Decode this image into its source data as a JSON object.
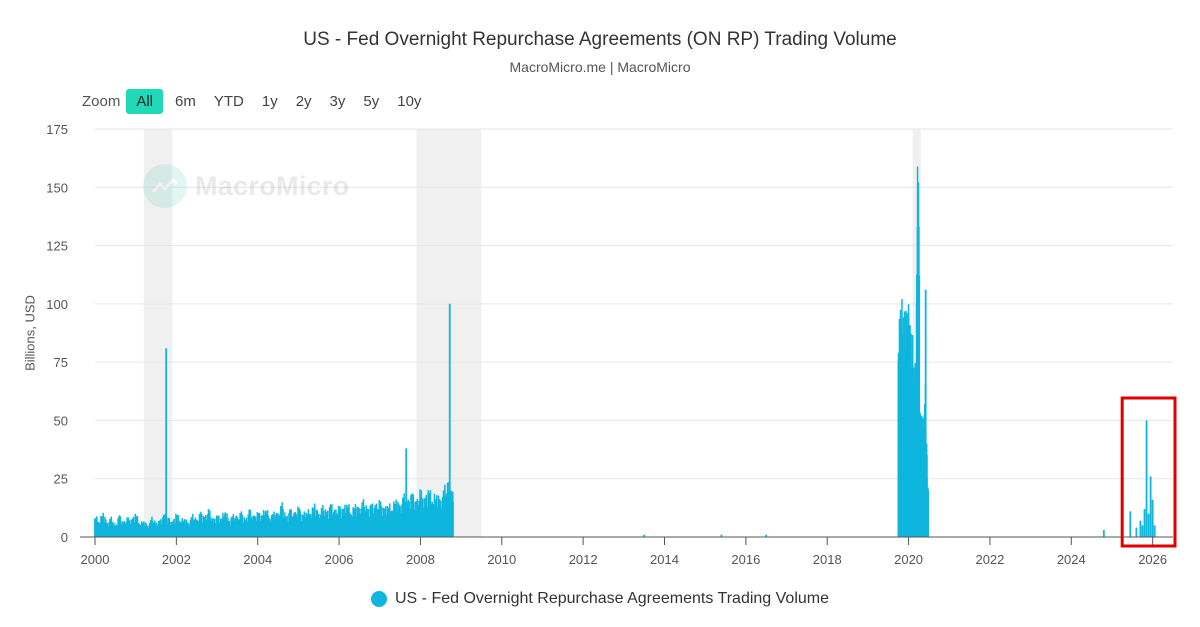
{
  "chart_data": {
    "type": "bar",
    "title": "US - Fed Overnight Repurchase Agreements (ON RP) Trading Volume",
    "subtitle": "MacroMicro.me | MacroMicro",
    "ylabel": "Billions, USD",
    "xlabel": "",
    "xlim": [
      2000,
      2026.5
    ],
    "ylim": [
      0,
      175
    ],
    "yticks": [
      0,
      25,
      50,
      75,
      100,
      125,
      150,
      175
    ],
    "xticks": [
      2000,
      2002,
      2004,
      2006,
      2008,
      2010,
      2012,
      2014,
      2016,
      2018,
      2020,
      2022,
      2024,
      2026
    ],
    "recessions": [
      [
        2001.2,
        2001.9
      ],
      [
        2007.9,
        2009.5
      ],
      [
        2020.1,
        2020.3
      ]
    ],
    "highlight_box": [
      2025.3,
      2026.5
    ],
    "series": [
      {
        "name": "US - Fed Overnight Repurchase Agreements Trading Volume",
        "color": "#0fb5dc",
        "points": [
          [
            2000.0,
            8
          ],
          [
            2000.1,
            6
          ],
          [
            2000.2,
            9
          ],
          [
            2000.3,
            5
          ],
          [
            2000.4,
            7
          ],
          [
            2000.5,
            4
          ],
          [
            2000.6,
            8
          ],
          [
            2000.7,
            5
          ],
          [
            2000.8,
            7
          ],
          [
            2000.9,
            6
          ],
          [
            2001.0,
            9
          ],
          [
            2001.1,
            5
          ],
          [
            2001.2,
            6
          ],
          [
            2001.3,
            4
          ],
          [
            2001.4,
            7
          ],
          [
            2001.5,
            5
          ],
          [
            2001.6,
            6
          ],
          [
            2001.7,
            8
          ],
          [
            2001.75,
            81
          ],
          [
            2001.8,
            7
          ],
          [
            2001.9,
            5
          ],
          [
            2002.0,
            9
          ],
          [
            2002.1,
            6
          ],
          [
            2002.2,
            7
          ],
          [
            2002.3,
            5
          ],
          [
            2002.4,
            8
          ],
          [
            2002.5,
            6
          ],
          [
            2002.6,
            9
          ],
          [
            2002.7,
            7
          ],
          [
            2002.8,
            10
          ],
          [
            2002.9,
            6
          ],
          [
            2003.0,
            8
          ],
          [
            2003.1,
            7
          ],
          [
            2003.2,
            10
          ],
          [
            2003.3,
            6
          ],
          [
            2003.4,
            8
          ],
          [
            2003.5,
            7
          ],
          [
            2003.6,
            9
          ],
          [
            2003.7,
            6
          ],
          [
            2003.8,
            10
          ],
          [
            2003.9,
            7
          ],
          [
            2004.0,
            9
          ],
          [
            2004.1,
            8
          ],
          [
            2004.2,
            11
          ],
          [
            2004.3,
            7
          ],
          [
            2004.4,
            9
          ],
          [
            2004.5,
            8
          ],
          [
            2004.6,
            12
          ],
          [
            2004.7,
            7
          ],
          [
            2004.8,
            10
          ],
          [
            2004.9,
            8
          ],
          [
            2005.0,
            11
          ],
          [
            2005.1,
            8
          ],
          [
            2005.2,
            10
          ],
          [
            2005.3,
            9
          ],
          [
            2005.4,
            12
          ],
          [
            2005.5,
            8
          ],
          [
            2005.6,
            11
          ],
          [
            2005.7,
            9
          ],
          [
            2005.8,
            12
          ],
          [
            2005.9,
            9
          ],
          [
            2006.0,
            11
          ],
          [
            2006.1,
            10
          ],
          [
            2006.2,
            13
          ],
          [
            2006.3,
            9
          ],
          [
            2006.4,
            12
          ],
          [
            2006.5,
            10
          ],
          [
            2006.6,
            13
          ],
          [
            2006.7,
            10
          ],
          [
            2006.8,
            12
          ],
          [
            2006.9,
            11
          ],
          [
            2007.0,
            13
          ],
          [
            2007.1,
            10
          ],
          [
            2007.2,
            12
          ],
          [
            2007.3,
            11
          ],
          [
            2007.4,
            14
          ],
          [
            2007.5,
            11
          ],
          [
            2007.6,
            15
          ],
          [
            2007.65,
            38
          ],
          [
            2007.7,
            13
          ],
          [
            2007.8,
            16
          ],
          [
            2007.9,
            12
          ],
          [
            2008.0,
            17
          ],
          [
            2008.1,
            13
          ],
          [
            2008.2,
            18
          ],
          [
            2008.3,
            14
          ],
          [
            2008.4,
            16
          ],
          [
            2008.5,
            13
          ],
          [
            2008.6,
            18
          ],
          [
            2008.7,
            19
          ],
          [
            2008.72,
            100
          ],
          [
            2008.75,
            20
          ],
          [
            2008.8,
            15
          ],
          [
            2013.5,
            1
          ],
          [
            2015.4,
            1
          ],
          [
            2016.5,
            1
          ],
          [
            2019.75,
            75
          ],
          [
            2019.8,
            89
          ],
          [
            2019.85,
            82
          ],
          [
            2019.9,
            78
          ],
          [
            2019.95,
            80
          ],
          [
            2020.0,
            88
          ],
          [
            2020.05,
            76
          ],
          [
            2020.1,
            70
          ],
          [
            2020.15,
            60
          ],
          [
            2020.2,
            100
          ],
          [
            2020.22,
            133
          ],
          [
            2020.24,
            152
          ],
          [
            2020.26,
            112
          ],
          [
            2020.3,
            45
          ],
          [
            2020.35,
            42
          ],
          [
            2020.4,
            57
          ],
          [
            2020.42,
            106
          ],
          [
            2020.45,
            35
          ],
          [
            2020.48,
            20
          ],
          [
            2024.8,
            3
          ],
          [
            2025.45,
            11
          ],
          [
            2025.6,
            4
          ],
          [
            2025.7,
            7
          ],
          [
            2025.75,
            5
          ],
          [
            2025.8,
            12
          ],
          [
            2025.85,
            50
          ],
          [
            2025.9,
            10
          ],
          [
            2025.95,
            26
          ],
          [
            2026.0,
            16
          ],
          [
            2026.05,
            5
          ]
        ]
      }
    ]
  },
  "zoom": {
    "label": "Zoom",
    "buttons": [
      "All",
      "6m",
      "YTD",
      "1y",
      "2y",
      "3y",
      "5y",
      "10y"
    ],
    "active": "All"
  },
  "watermark": "MacroMicro",
  "legend": {
    "label": "US - Fed Overnight Repurchase Agreements Trading Volume"
  },
  "colors": {
    "accent": "#1fd9b8",
    "bar": "#0fb5dc",
    "recession": "#f0f0f0",
    "highlight": "#e00000"
  }
}
